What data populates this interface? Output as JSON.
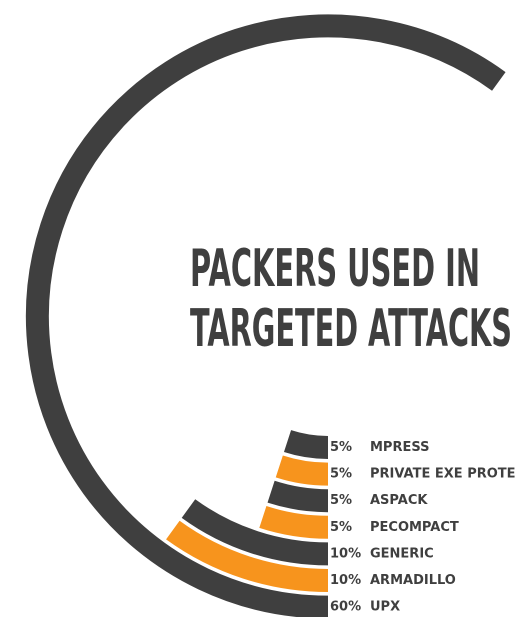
{
  "chart_data": {
    "type": "radial-bar",
    "title_lines": [
      "PACKERS USED IN",
      "TARGETED ATTACKS"
    ],
    "categories": [
      "MPRESS",
      "PRIVATE EXE PROTEC",
      "ASPACK",
      "PECOMPACT",
      "GENERIC",
      "ARMADILLO",
      "UPX"
    ],
    "values": [
      5,
      5,
      5,
      5,
      10,
      10,
      60
    ],
    "value_labels": [
      "5%",
      "5%",
      "5%",
      "5%",
      "10%",
      "10%",
      "60%"
    ],
    "colors": [
      "#3f3f3f",
      "#f7941d",
      "#3f3f3f",
      "#f7941d",
      "#3f3f3f",
      "#f7941d",
      "#3f3f3f"
    ]
  }
}
